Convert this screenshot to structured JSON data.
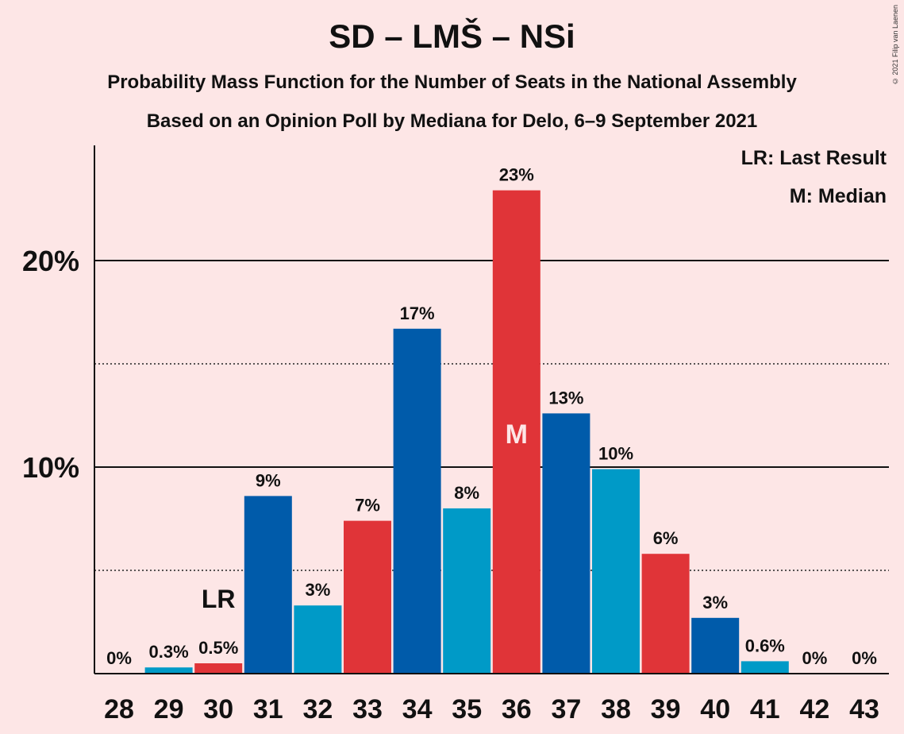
{
  "title": "SD – LMŠ – NSi",
  "subtitle_1": "Probability Mass Function for the Number of Seats in the National Assembly",
  "subtitle_2": "Based on an Opinion Poll by Mediana for Delo, 6–9 September 2021",
  "legend": {
    "last_result": "LR: Last Result",
    "median": "M: Median"
  },
  "copyright": "© 2021 Filip van Laenen",
  "colors": {
    "background": "#FDE6E6",
    "dark_blue": "#005BAA",
    "light_blue": "#009AC7",
    "red": "#E03438"
  },
  "chart_data": {
    "type": "bar",
    "categories": [
      "28",
      "29",
      "30",
      "31",
      "32",
      "33",
      "34",
      "35",
      "36",
      "37",
      "38",
      "39",
      "40",
      "41",
      "42",
      "43"
    ],
    "values": [
      0,
      0.3,
      0.5,
      8.6,
      3.3,
      7.4,
      16.7,
      8.0,
      23.4,
      12.6,
      9.9,
      5.8,
      2.7,
      0.6,
      0,
      0
    ],
    "value_labels": [
      "0%",
      "0.3%",
      "0.5%",
      "9%",
      "3%",
      "7%",
      "17%",
      "8%",
      "23%",
      "13%",
      "10%",
      "6%",
      "3%",
      "0.6%",
      "0%",
      "0%"
    ],
    "bar_colors": [
      "#009AC7",
      "#009AC7",
      "#E03438",
      "#005BAA",
      "#009AC7",
      "#E03438",
      "#005BAA",
      "#009AC7",
      "#E03438",
      "#005BAA",
      "#009AC7",
      "#E03438",
      "#005BAA",
      "#009AC7",
      "#E03438",
      "#005BAA"
    ],
    "y_ticks": [
      {
        "value": 10,
        "label": "10%"
      },
      {
        "value": 20,
        "label": "20%"
      }
    ],
    "dotted_lines": [
      5,
      15
    ],
    "ylim": [
      0,
      25.5
    ],
    "last_result": {
      "category": "30",
      "label": "LR"
    },
    "median": {
      "category": "36",
      "label": "M"
    }
  }
}
